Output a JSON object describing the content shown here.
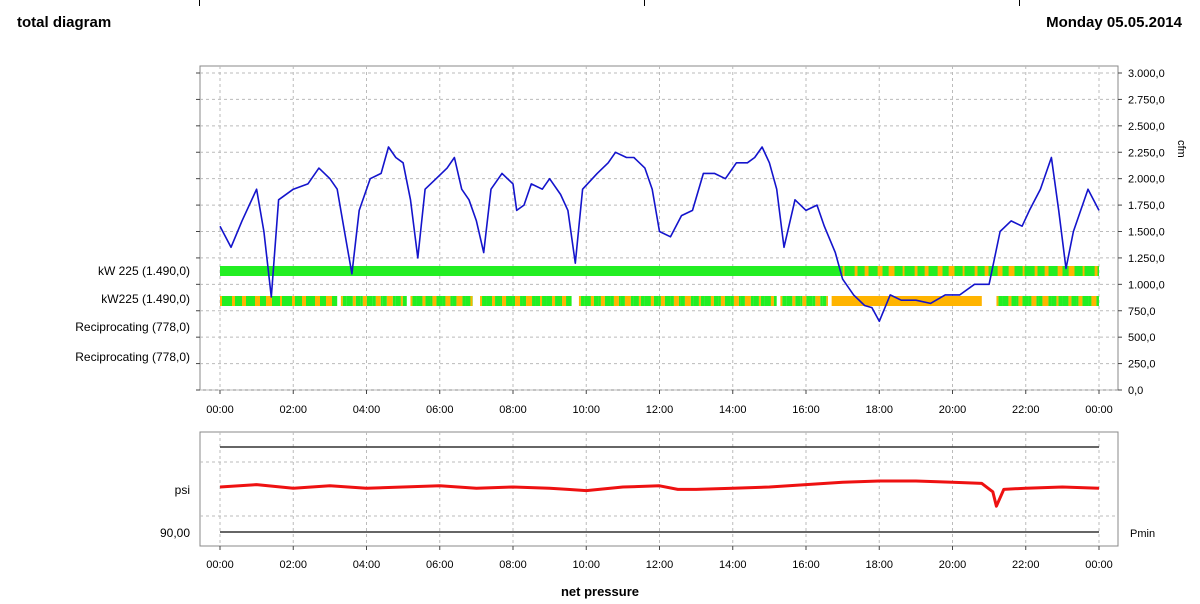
{
  "header": {
    "title": "total diagram",
    "date": "Monday  05.05.2014"
  },
  "chart_data": [
    {
      "type": "line",
      "time_ticks": [
        "00:00",
        "02:00",
        "04:00",
        "06:00",
        "08:00",
        "10:00",
        "12:00",
        "14:00",
        "16:00",
        "18:00",
        "20:00",
        "22:00",
        "00:00"
      ],
      "y2label": "cfm",
      "y2_ticks": [
        "3.000,0",
        "2.750,0",
        "2.500,0",
        "2.250,0",
        "2.000,0",
        "1.750,0",
        "1.500,0",
        "1.250,0",
        "1.000,0",
        "750,0",
        "500,0",
        "250,0",
        "0,0"
      ],
      "ylim": [
        0,
        3000
      ],
      "grid": true,
      "series": [
        {
          "color": "#1414cc",
          "points": [
            [
              0.0,
              1550
            ],
            [
              0.3,
              1350
            ],
            [
              0.6,
              1600
            ],
            [
              0.8,
              1750
            ],
            [
              1.0,
              1900
            ],
            [
              1.2,
              1500
            ],
            [
              1.4,
              880
            ],
            [
              1.6,
              1800
            ],
            [
              2.0,
              1900
            ],
            [
              2.4,
              1950
            ],
            [
              2.7,
              2100
            ],
            [
              3.0,
              2000
            ],
            [
              3.2,
              1900
            ],
            [
              3.4,
              1500
            ],
            [
              3.6,
              1100
            ],
            [
              3.8,
              1700
            ],
            [
              4.1,
              2000
            ],
            [
              4.4,
              2050
            ],
            [
              4.6,
              2300
            ],
            [
              4.8,
              2200
            ],
            [
              5.0,
              2150
            ],
            [
              5.2,
              1800
            ],
            [
              5.4,
              1250
            ],
            [
              5.6,
              1900
            ],
            [
              5.9,
              2000
            ],
            [
              6.2,
              2100
            ],
            [
              6.4,
              2200
            ],
            [
              6.6,
              1900
            ],
            [
              6.8,
              1800
            ],
            [
              7.0,
              1600
            ],
            [
              7.2,
              1300
            ],
            [
              7.4,
              1900
            ],
            [
              7.7,
              2050
            ],
            [
              8.0,
              1950
            ],
            [
              8.1,
              1700
            ],
            [
              8.3,
              1750
            ],
            [
              8.5,
              1950
            ],
            [
              8.8,
              1900
            ],
            [
              9.0,
              2000
            ],
            [
              9.3,
              1850
            ],
            [
              9.5,
              1700
            ],
            [
              9.7,
              1200
            ],
            [
              9.9,
              1900
            ],
            [
              10.3,
              2050
            ],
            [
              10.6,
              2150
            ],
            [
              10.8,
              2250
            ],
            [
              11.1,
              2200
            ],
            [
              11.3,
              2200
            ],
            [
              11.6,
              2100
            ],
            [
              11.8,
              1900
            ],
            [
              12.0,
              1500
            ],
            [
              12.3,
              1450
            ],
            [
              12.6,
              1650
            ],
            [
              12.9,
              1700
            ],
            [
              13.2,
              2050
            ],
            [
              13.5,
              2050
            ],
            [
              13.8,
              2000
            ],
            [
              14.1,
              2150
            ],
            [
              14.4,
              2150
            ],
            [
              14.6,
              2200
            ],
            [
              14.8,
              2300
            ],
            [
              15.0,
              2150
            ],
            [
              15.2,
              1900
            ],
            [
              15.4,
              1350
            ],
            [
              15.7,
              1800
            ],
            [
              16.0,
              1700
            ],
            [
              16.3,
              1750
            ],
            [
              16.5,
              1550
            ],
            [
              16.8,
              1300
            ],
            [
              17.0,
              1050
            ],
            [
              17.3,
              900
            ],
            [
              17.6,
              800
            ],
            [
              17.8,
              780
            ],
            [
              18.0,
              650
            ],
            [
              18.3,
              900
            ],
            [
              18.6,
              850
            ],
            [
              19.0,
              850
            ],
            [
              19.4,
              820
            ],
            [
              19.8,
              900
            ],
            [
              20.2,
              900
            ],
            [
              20.6,
              1000
            ],
            [
              21.0,
              1000
            ],
            [
              21.3,
              1500
            ],
            [
              21.6,
              1600
            ],
            [
              21.9,
              1550
            ],
            [
              22.1,
              1700
            ],
            [
              22.4,
              1900
            ],
            [
              22.7,
              2200
            ],
            [
              22.9,
              1700
            ],
            [
              23.1,
              1150
            ],
            [
              23.3,
              1500
            ],
            [
              23.5,
              1700
            ],
            [
              23.7,
              1900
            ],
            [
              24.0,
              1700
            ]
          ]
        }
      ],
      "status_rows": [
        {
          "label": "kW 225 (1.490,0)",
          "segments": [
            {
              "start": 0.0,
              "end": 24.0,
              "state": "on"
            },
            {
              "start": 17.0,
              "end": 24.0,
              "state": "mixed"
            }
          ]
        },
        {
          "label": "kW225 (1.490,0)",
          "segments": [
            {
              "start": 0.0,
              "end": 3.2,
              "state": "mixed"
            },
            {
              "start": 3.3,
              "end": 5.1,
              "state": "mixed"
            },
            {
              "start": 5.2,
              "end": 6.9,
              "state": "mixed"
            },
            {
              "start": 7.1,
              "end": 9.6,
              "state": "mixed"
            },
            {
              "start": 9.8,
              "end": 15.2,
              "state": "mixed"
            },
            {
              "start": 15.3,
              "end": 16.6,
              "state": "mixed"
            },
            {
              "start": 16.7,
              "end": 20.8,
              "state": "off"
            },
            {
              "start": 21.2,
              "end": 24.0,
              "state": "mixed"
            }
          ]
        },
        {
          "label": "Reciprocating (778,0)",
          "segments": []
        },
        {
          "label": "Reciprocating (778,0)",
          "segments": []
        }
      ],
      "status_colors": {
        "on": "#22ee22",
        "off": "#ffb400"
      }
    },
    {
      "type": "line",
      "xlabel": "net pressure",
      "time_ticks": [
        "00:00",
        "02:00",
        "04:00",
        "06:00",
        "08:00",
        "10:00",
        "12:00",
        "14:00",
        "16:00",
        "18:00",
        "20:00",
        "22:00",
        "00:00"
      ],
      "ylabel": "psi",
      "reference_lines": [
        {
          "label": "90,00",
          "right_label": "Pmin",
          "position": "bottom",
          "color": "#333333"
        },
        {
          "label": "",
          "position": "top",
          "color": "#333333"
        }
      ],
      "grid": true,
      "series": [
        {
          "color": "#ee1111",
          "points": [
            [
              0.0,
              0
            ],
            [
              1.0,
              2
            ],
            [
              2.0,
              -1
            ],
            [
              3.0,
              1
            ],
            [
              4.0,
              -1
            ],
            [
              5.0,
              0
            ],
            [
              6.0,
              1
            ],
            [
              7.0,
              -1
            ],
            [
              8.0,
              0
            ],
            [
              9.0,
              -1
            ],
            [
              9.5,
              -2
            ],
            [
              10.0,
              -3
            ],
            [
              11.0,
              0
            ],
            [
              12.0,
              1
            ],
            [
              12.5,
              -2
            ],
            [
              13.0,
              -2
            ],
            [
              14.0,
              -1
            ],
            [
              15.0,
              0
            ],
            [
              16.0,
              2
            ],
            [
              17.0,
              4
            ],
            [
              18.0,
              5
            ],
            [
              19.0,
              5
            ],
            [
              20.0,
              4
            ],
            [
              20.8,
              3
            ],
            [
              21.1,
              -4
            ],
            [
              21.2,
              -16
            ],
            [
              21.4,
              -2
            ],
            [
              22.0,
              -1
            ],
            [
              23.0,
              0
            ],
            [
              24.0,
              -1
            ]
          ]
        }
      ]
    }
  ]
}
